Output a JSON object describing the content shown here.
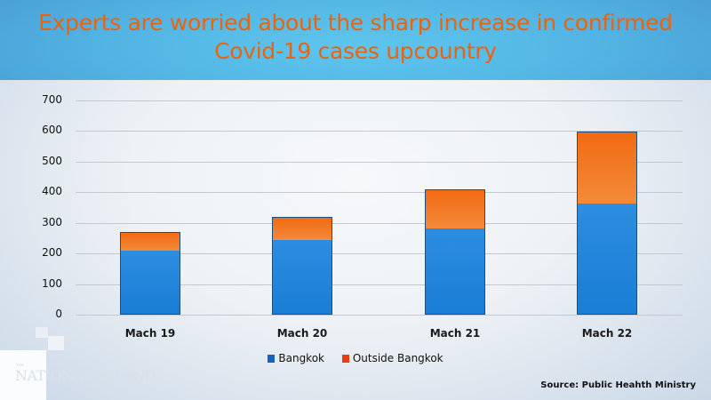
{
  "header": {
    "title_line1": "Experts are worried about the sharp increase in confirmed",
    "title_line2": "Covid-19 cases upcountry"
  },
  "branding": {
    "logo_small": "THE",
    "logo_text": "NATION|THAILAND"
  },
  "source": "Source: Public Heahth Ministry",
  "legend": [
    {
      "label": "Bangkok",
      "color": "#1565c0"
    },
    {
      "label": "Outside Bangkok",
      "color": "#e8400c"
    }
  ],
  "chart_data": {
    "type": "bar",
    "stacked": true,
    "title": "Experts are worried about the sharp increase in confirmed Covid-19 cases upcountry",
    "xlabel": "",
    "ylabel": "",
    "categories": [
      "Mach 19",
      "Mach 20",
      "Mach 21",
      "Mach 22"
    ],
    "series": [
      {
        "name": "Bangkok",
        "color": "#1f85d8",
        "values": [
          212,
          247,
          282,
          363
        ]
      },
      {
        "name": "Outside Bangkok",
        "color": "#f27022",
        "values": [
          58,
          73,
          128,
          235
        ]
      }
    ],
    "totals": [
      270,
      320,
      410,
      598
    ],
    "ylim": [
      0,
      700
    ],
    "yticks": [
      0,
      100,
      200,
      300,
      400,
      500,
      600,
      700
    ],
    "grid": true,
    "legend_position": "bottom",
    "source": "Source: Public Heahth Ministry"
  }
}
